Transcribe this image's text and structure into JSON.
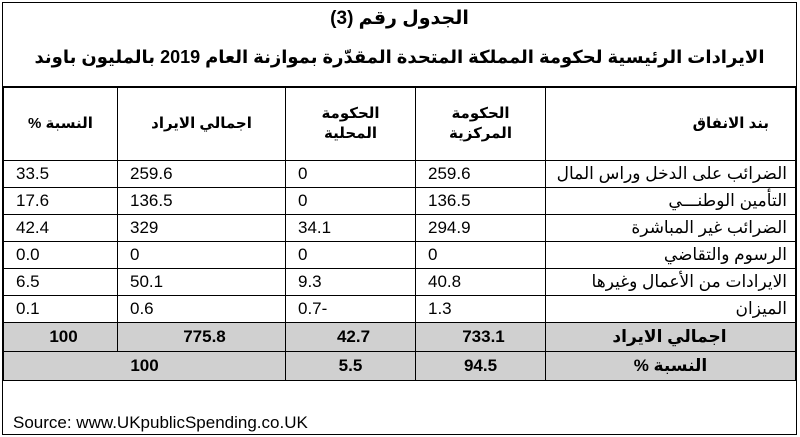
{
  "caption": {
    "table_number": "الجدول رقم (3)",
    "title": "الايرادات الرئيسية لحكومة المملكة المتحدة المقدّرة بموازنة العام 2019 بالمليون باوند"
  },
  "headers": {
    "item": "بند الانفاق",
    "central_line1": "الحكومة",
    "central_line2": "المركزية",
    "local_line1": "الحكومة",
    "local_line2": "المحلية",
    "total": "اجمالي الايراد",
    "percent": "النسبة %"
  },
  "rows": [
    {
      "item": "الضرائب على الدخل وراس المال",
      "central": "259.6",
      "local": "0",
      "total": "259.6",
      "percent": "33.5"
    },
    {
      "item": "التأمين الوطنـــي",
      "central": "136.5",
      "local": "0",
      "total": "136.5",
      "percent": "17.6"
    },
    {
      "item": "الضرائب غير المباشرة",
      "central": "294.9",
      "local": "34.1",
      "total": "329",
      "percent": "42.4"
    },
    {
      "item": "الرسوم والتقاضي",
      "central": "0",
      "local": "0",
      "total": "0",
      "percent": "0.0"
    },
    {
      "item": "الايرادات من الأعمال وغيرها",
      "central": "40.8",
      "local": "9.3",
      "total": "50.1",
      "percent": "6.5"
    },
    {
      "item": "الميزان",
      "central": "1.3",
      "local": "-0.7",
      "total": "0.6",
      "percent": "0.1"
    }
  ],
  "total_row": {
    "item": "اجمالي الايراد",
    "central": "733.1",
    "local": "42.7",
    "total": "775.8",
    "percent": "100"
  },
  "share_row": {
    "item": "النسبة %",
    "central": "94.5",
    "local": "5.5",
    "combined": "100"
  },
  "source": "Source: www.UKpublicSpending.co.UK"
}
